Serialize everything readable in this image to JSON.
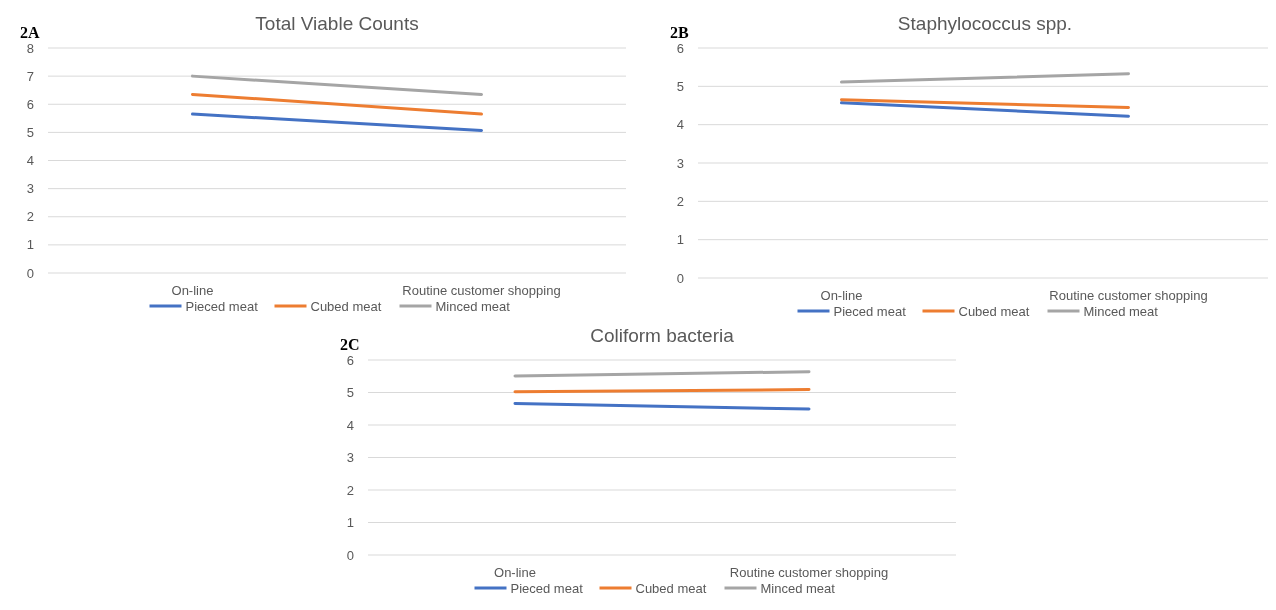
{
  "chart_data": [
    {
      "type": "line",
      "title": "Total Viable Counts",
      "annotations": [
        "2A"
      ],
      "categories": [
        "On-line",
        "Routine customer shopping"
      ],
      "series": [
        {
          "name": "Pieced meat",
          "color": "#4472c4",
          "values": [
            5.65,
            5.07
          ]
        },
        {
          "name": "Cubed meat",
          "color": "#ed7d31",
          "values": [
            6.35,
            5.65
          ]
        },
        {
          "name": "Minced meat",
          "color": "#a5a5a5",
          "values": [
            7.0,
            6.35
          ]
        }
      ],
      "ylim": [
        0,
        8
      ],
      "yticks": [
        0,
        1,
        2,
        3,
        4,
        5,
        6,
        7,
        8
      ],
      "grid": "y",
      "legend": "bottom",
      "marker": "none"
    },
    {
      "type": "line",
      "title": "Staphylococcus spp.",
      "annotations": [
        "2B"
      ],
      "categories": [
        "On-line",
        "Routine customer shopping"
      ],
      "series": [
        {
          "name": "Pieced meat",
          "color": "#4472c4",
          "values": [
            4.57,
            4.22
          ]
        },
        {
          "name": "Cubed meat",
          "color": "#ed7d31",
          "values": [
            4.65,
            4.45
          ]
        },
        {
          "name": "Minced meat",
          "color": "#a5a5a5",
          "values": [
            5.11,
            5.33
          ]
        }
      ],
      "ylim": [
        0,
        6
      ],
      "yticks": [
        0,
        1,
        2,
        3,
        4,
        5,
        6
      ],
      "grid": "y",
      "legend": "bottom",
      "marker": "none"
    },
    {
      "type": "line",
      "title": "Coliform bacteria",
      "annotations": [
        "2C"
      ],
      "categories": [
        "On-line",
        "Routine customer shopping"
      ],
      "series": [
        {
          "name": "Pieced meat",
          "color": "#4472c4",
          "values": [
            4.66,
            4.49
          ]
        },
        {
          "name": "Cubed meat",
          "color": "#ed7d31",
          "values": [
            5.02,
            5.09
          ]
        },
        {
          "name": "Minced meat",
          "color": "#a5a5a5",
          "values": [
            5.51,
            5.64
          ]
        }
      ],
      "ylim": [
        0,
        6
      ],
      "yticks": [
        0,
        1,
        2,
        3,
        4,
        5,
        6
      ],
      "grid": "y",
      "legend": "bottom",
      "marker": "none"
    }
  ]
}
